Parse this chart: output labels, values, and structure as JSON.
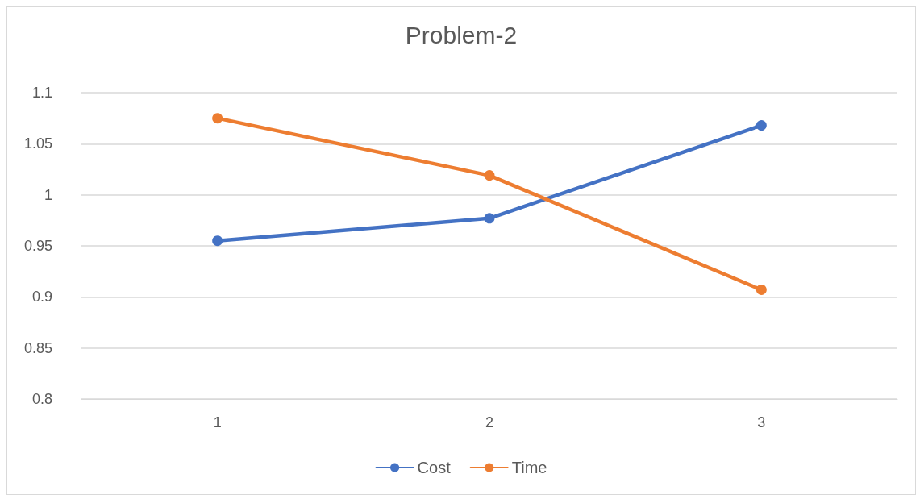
{
  "chart_data": {
    "type": "line",
    "title": "Problem-2",
    "categories": [
      "1",
      "2",
      "3"
    ],
    "series": [
      {
        "name": "Cost",
        "color": "#4472c4",
        "values": [
          0.955,
          0.977,
          1.068
        ]
      },
      {
        "name": "Time",
        "color": "#ed7d31",
        "values": [
          1.075,
          1.019,
          0.907
        ]
      }
    ],
    "ylim": [
      0.8,
      1.1
    ],
    "yticks": [
      0.8,
      0.85,
      0.9,
      0.95,
      1,
      1.05,
      1.1
    ],
    "grid": "y",
    "legend": "bottom",
    "marker": "circle",
    "line_style": "solid"
  }
}
